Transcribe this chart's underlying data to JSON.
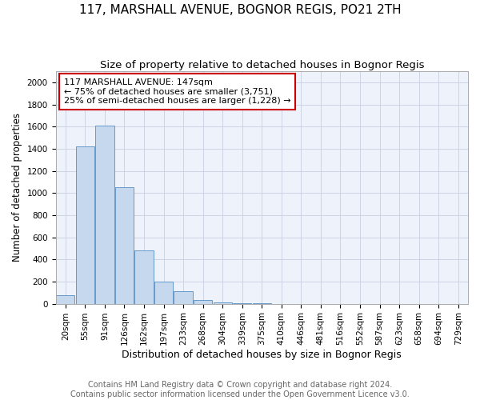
{
  "title": "117, MARSHALL AVENUE, BOGNOR REGIS, PO21 2TH",
  "subtitle": "Size of property relative to detached houses in Bognor Regis",
  "xlabel": "Distribution of detached houses by size in Bognor Regis",
  "ylabel": "Number of detached properties",
  "footer_line1": "Contains HM Land Registry data © Crown copyright and database right 2024.",
  "footer_line2": "Contains public sector information licensed under the Open Government Licence v3.0.",
  "categories": [
    "20sqm",
    "55sqm",
    "91sqm",
    "126sqm",
    "162sqm",
    "197sqm",
    "233sqm",
    "268sqm",
    "304sqm",
    "339sqm",
    "375sqm",
    "410sqm",
    "446sqm",
    "481sqm",
    "516sqm",
    "552sqm",
    "587sqm",
    "623sqm",
    "658sqm",
    "694sqm",
    "729sqm"
  ],
  "values": [
    80,
    1420,
    1610,
    1050,
    480,
    200,
    110,
    35,
    15,
    5,
    2,
    0,
    0,
    0,
    0,
    0,
    0,
    0,
    0,
    0,
    0
  ],
  "bar_color": "#c5d8ed",
  "bar_edge_color": "#6699cc",
  "background_color": "#eef2fa",
  "grid_color": "#c8cfe0",
  "annotation_box_color": "#ffffff",
  "annotation_box_edge": "#cc0000",
  "annotation_line1": "117 MARSHALL AVENUE: 147sqm",
  "annotation_line2": "← 75% of detached houses are smaller (3,751)",
  "annotation_line3": "25% of semi-detached houses are larger (1,228) →",
  "ylim": [
    0,
    2100
  ],
  "yticks": [
    0,
    200,
    400,
    600,
    800,
    1000,
    1200,
    1400,
    1600,
    1800,
    2000
  ],
  "title_fontsize": 11,
  "subtitle_fontsize": 9.5,
  "xlabel_fontsize": 9,
  "ylabel_fontsize": 8.5,
  "tick_fontsize": 7.5,
  "annotation_fontsize": 8,
  "footer_fontsize": 7
}
